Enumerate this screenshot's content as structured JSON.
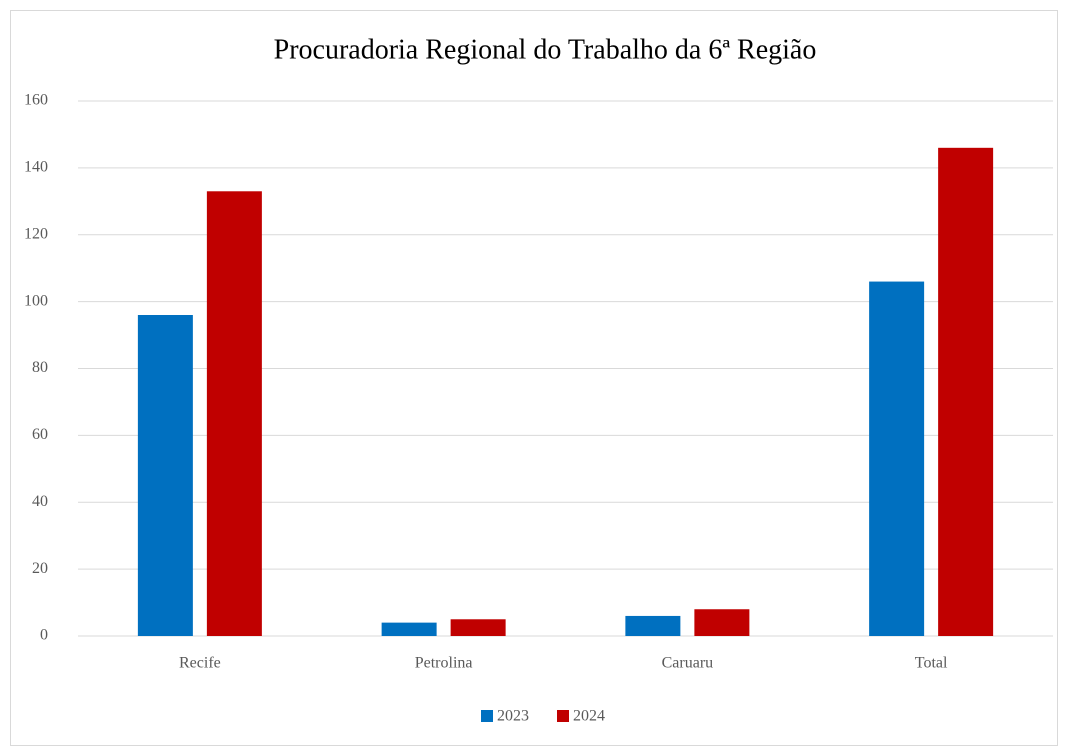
{
  "chart_data": {
    "type": "bar",
    "title": "Procuradoria Regional do Trabalho da 6ª Região",
    "categories": [
      "Recife",
      "Petrolina",
      "Caruaru",
      "Total"
    ],
    "series": [
      {
        "name": "2023",
        "color": "#0070c0",
        "values": [
          96,
          4,
          6,
          106
        ]
      },
      {
        "name": "2024",
        "color": "#c00000",
        "values": [
          133,
          5,
          8,
          146
        ]
      }
    ],
    "ylim": [
      0,
      160
    ],
    "yticks": [
      0,
      20,
      40,
      60,
      80,
      100,
      120,
      140,
      160
    ],
    "grid": true,
    "legend": "bottom"
  }
}
